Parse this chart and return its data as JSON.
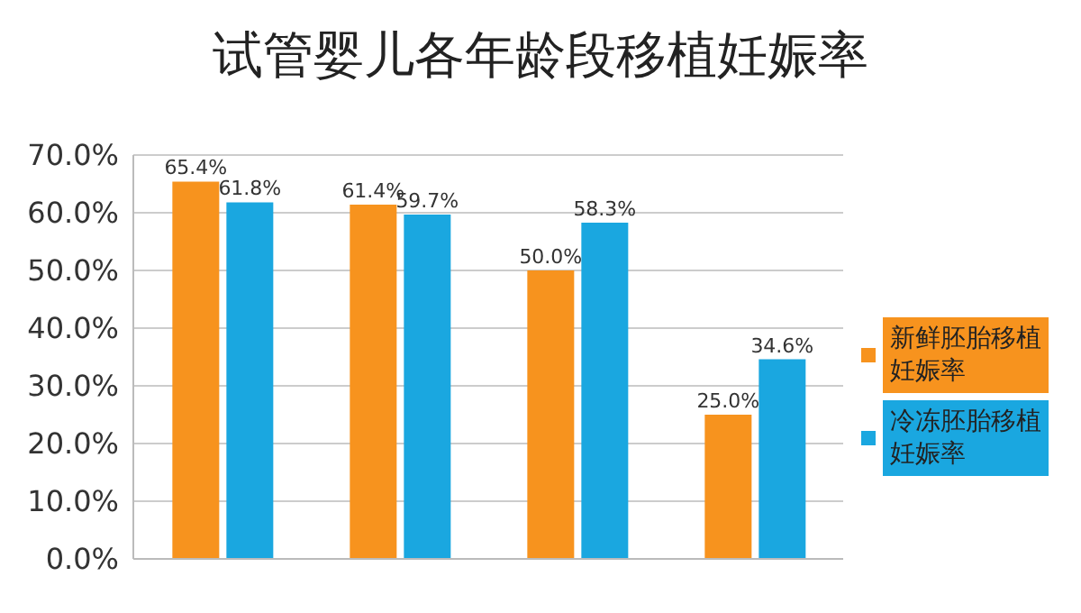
{
  "chart_data": {
    "type": "bar",
    "title": "试管婴儿各年龄段移植妊娠率",
    "categories": [
      null,
      null,
      null,
      null
    ],
    "series": [
      {
        "name": "新鲜胚胎移植妊娠率",
        "color": "#f7931e",
        "values": [
          65.4,
          61.4,
          50.0,
          25.0
        ],
        "value_labels": [
          "65.4%",
          "61.4%",
          "50.0%",
          "25.0%"
        ]
      },
      {
        "name": "冷冻胚胎移植妊娠率",
        "color": "#1aa7e0",
        "values": [
          61.8,
          59.7,
          58.3,
          34.6
        ],
        "value_labels": [
          "61.8%",
          "59.7%",
          "58.3%",
          "34.6%"
        ]
      }
    ],
    "ylim": [
      0,
      70
    ],
    "yticks": [
      {
        "value": 0,
        "label": "0.0%"
      },
      {
        "value": 10,
        "label": "10.0%"
      },
      {
        "value": 20,
        "label": "20.0%"
      },
      {
        "value": 30,
        "label": "30.0%"
      },
      {
        "value": 40,
        "label": "40.0%"
      },
      {
        "value": 50,
        "label": "50.0%"
      },
      {
        "value": 60,
        "label": "60.0%"
      },
      {
        "value": 70,
        "label": "70.0%"
      }
    ],
    "grid": "y",
    "legend": "right"
  }
}
